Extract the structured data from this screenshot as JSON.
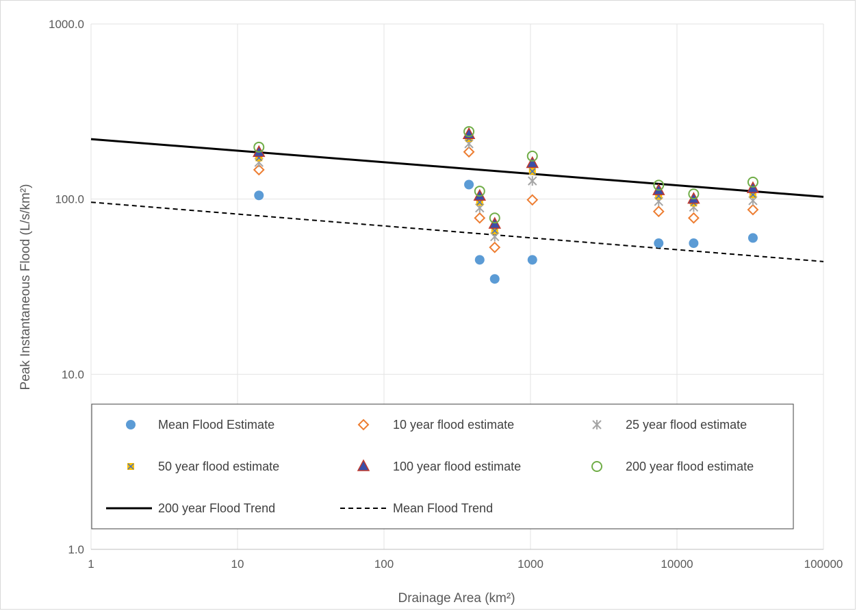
{
  "chart_data": {
    "type": "scatter",
    "title": "",
    "xlabel": "Drainage Area (km²)",
    "ylabel": "Peak Instantaneous Flood (L/s/km²)",
    "xscale": "log",
    "yscale": "log",
    "xlim": [
      1,
      100000
    ],
    "ylim": [
      1,
      1000
    ],
    "x_tick_labels": [
      "1",
      "10",
      "100",
      "1000",
      "10000",
      "100000"
    ],
    "y_tick_labels": [
      "1.0",
      "10.0",
      "100.0",
      "1000.0"
    ],
    "grid": true,
    "legend_position": "bottom-inside",
    "series": [
      {
        "name": "Mean Flood Estimate",
        "marker": "circle-filled",
        "color": "#5b9bd5",
        "points": [
          [
            14,
            105
          ],
          [
            380,
            121
          ],
          [
            450,
            45
          ],
          [
            570,
            35
          ],
          [
            1030,
            45
          ],
          [
            7500,
            56
          ],
          [
            13000,
            56
          ],
          [
            33000,
            60
          ]
        ]
      },
      {
        "name": "10 year flood estimate",
        "marker": "diamond-open",
        "color": "#ed7d31",
        "points": [
          [
            14,
            147
          ],
          [
            380,
            186
          ],
          [
            450,
            78
          ],
          [
            570,
            53
          ],
          [
            1030,
            99
          ],
          [
            7500,
            85
          ],
          [
            13000,
            78
          ],
          [
            33000,
            87
          ]
        ]
      },
      {
        "name": "25 year flood estimate",
        "marker": "asterisk",
        "color": "#a5a5a5",
        "points": [
          [
            14,
            162
          ],
          [
            380,
            207
          ],
          [
            450,
            89
          ],
          [
            570,
            61
          ],
          [
            1030,
            127
          ],
          [
            7500,
            97
          ],
          [
            13000,
            90
          ],
          [
            33000,
            98
          ]
        ]
      },
      {
        "name": "50 year flood estimate",
        "marker": "square-x",
        "color": "#ffc000",
        "points": [
          [
            14,
            172
          ],
          [
            380,
            222
          ],
          [
            450,
            96
          ],
          [
            570,
            66
          ],
          [
            1030,
            144
          ],
          [
            7500,
            104
          ],
          [
            13000,
            95
          ],
          [
            33000,
            106
          ]
        ]
      },
      {
        "name": "100 year flood estimate",
        "marker": "triangle-filled",
        "color": "#3b4fa8",
        "points": [
          [
            14,
            185
          ],
          [
            380,
            234
          ],
          [
            450,
            104
          ],
          [
            570,
            72
          ],
          [
            1030,
            160
          ],
          [
            7500,
            112
          ],
          [
            13000,
            100
          ],
          [
            33000,
            115
          ]
        ]
      },
      {
        "name": "200 year flood estimate",
        "marker": "circle-open",
        "color": "#70ad47",
        "points": [
          [
            14,
            198
          ],
          [
            380,
            243
          ],
          [
            450,
            111
          ],
          [
            570,
            78
          ],
          [
            1030,
            176
          ],
          [
            7500,
            120
          ],
          [
            13000,
            107
          ],
          [
            33000,
            125
          ]
        ]
      }
    ],
    "trendlines": [
      {
        "name": "200 year Flood Trend",
        "style": "solid",
        "color": "#000000",
        "x": [
          1,
          100000
        ],
        "y": [
          220,
          103
        ]
      },
      {
        "name": "Mean Flood Trend",
        "style": "dashed",
        "color": "#000000",
        "x": [
          1,
          100000
        ],
        "y": [
          96,
          44
        ]
      }
    ]
  }
}
